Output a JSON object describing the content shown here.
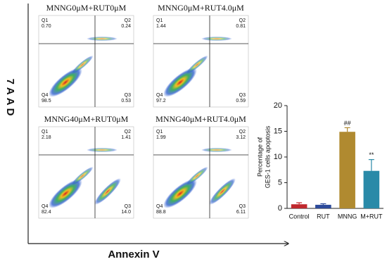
{
  "figure": {
    "y_axis_label": "7AAD",
    "x_axis_label": "Annexin V",
    "plots": [
      {
        "title": "MNNG0μM+RUT0μM",
        "quadrants": [
          {
            "label": "Q1",
            "value": "0.70"
          },
          {
            "label": "Q2",
            "value": "0.24"
          },
          {
            "label": "Q4",
            "value": "98.5"
          },
          {
            "label": "Q3",
            "value": "0.53"
          }
        ]
      },
      {
        "title": "MNNG0μM+RUT4.0μM",
        "quadrants": [
          {
            "label": "Q1",
            "value": "1.44"
          },
          {
            "label": "Q2",
            "value": "0.81"
          },
          {
            "label": "Q4",
            "value": "97.2"
          },
          {
            "label": "Q3",
            "value": "0.59"
          }
        ]
      },
      {
        "title": "MNNG40μM+RUT0μM",
        "quadrants": [
          {
            "label": "Q1",
            "value": "2.18"
          },
          {
            "label": "Q2",
            "value": "1.41"
          },
          {
            "label": "Q4",
            "value": "82.4"
          },
          {
            "label": "Q3",
            "value": "14.0"
          }
        ]
      },
      {
        "title": "MNNG40μM+RUT4.0μM",
        "quadrants": [
          {
            "label": "Q1",
            "value": "1.99"
          },
          {
            "label": "Q2",
            "value": "3.12"
          },
          {
            "label": "Q4",
            "value": "88.8"
          },
          {
            "label": "Q3",
            "value": "6.11"
          }
        ]
      }
    ]
  },
  "chart_data": {
    "type": "bar",
    "y_label": [
      "Percentage of",
      "GES-1 cells apoptosis"
    ],
    "categories": [
      "Control",
      "RUT",
      "MNNG",
      "M+RUT"
    ],
    "values": [
      0.8,
      0.7,
      14.9,
      7.3
    ],
    "errors": [
      0.3,
      0.2,
      0.8,
      2.2
    ],
    "annotations": [
      null,
      null,
      "##",
      "**"
    ],
    "colors": [
      "#c0282d",
      "#2c4a9a",
      "#b08a30",
      "#2a8aa8"
    ],
    "ylim": [
      0,
      20
    ],
    "yticks": [
      0,
      5,
      10,
      15,
      20
    ]
  }
}
